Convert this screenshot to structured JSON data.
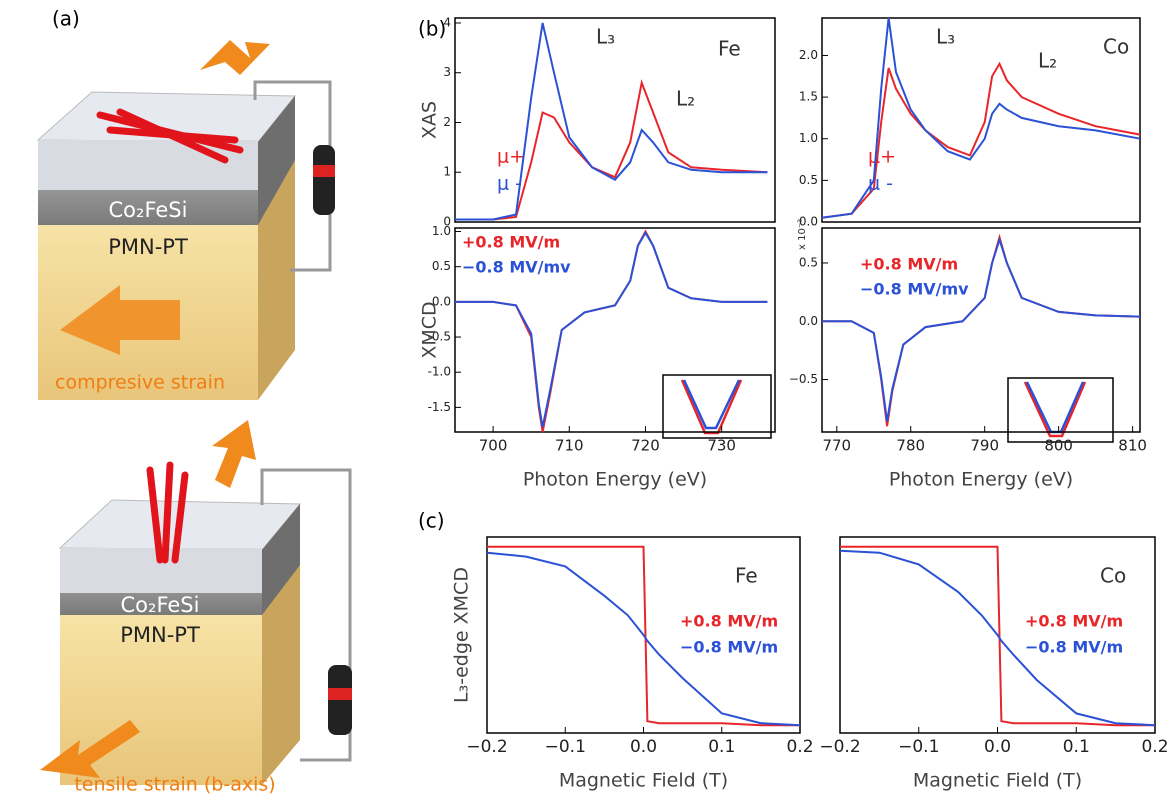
{
  "panel_labels": [
    "(a)",
    "(b)",
    "(c)"
  ],
  "panel_a": {
    "film": "Co₂FeSi",
    "substrate": "PMN-PT",
    "top_caption": "compresive strain",
    "bottom_caption": "tensile strain (b-axis)"
  },
  "chart_data": [
    {
      "type": "line",
      "ylabel": "XAS",
      "annotations": [
        "L₃",
        "L₂",
        "Fe"
      ],
      "x": [
        695,
        700,
        703,
        705,
        706.5,
        708,
        710,
        713,
        716,
        718,
        719.5,
        721,
        723,
        726,
        730,
        736
      ],
      "series": [
        {
          "name": "μ+",
          "color": "#e8262a",
          "values": [
            0.05,
            0.05,
            0.1,
            1.2,
            2.2,
            2.1,
            1.6,
            1.1,
            0.9,
            1.6,
            2.8,
            2.2,
            1.4,
            1.1,
            1.05,
            1.0
          ]
        },
        {
          "name": "μ -",
          "color": "#2b52d6",
          "values": [
            0.05,
            0.05,
            0.15,
            2.5,
            4.0,
            3.0,
            1.7,
            1.1,
            0.85,
            1.2,
            1.85,
            1.6,
            1.2,
            1.05,
            1.0,
            1.0
          ]
        }
      ],
      "xlim": [
        695,
        737
      ],
      "ylim": [
        0,
        4.1
      ],
      "yticks": [
        0,
        1,
        2,
        3,
        4
      ]
    },
    {
      "type": "line",
      "ylabel": "XMCD",
      "xlabel": "Photon Energy (eV)",
      "x": [
        695,
        700,
        703,
        705,
        706,
        706.5,
        707.5,
        709,
        712,
        716,
        718,
        719,
        720,
        721,
        723,
        726,
        730,
        736
      ],
      "series": [
        {
          "name": "+0.8 MV/m",
          "color": "#e8262a",
          "values": [
            0,
            0,
            -0.05,
            -0.5,
            -1.5,
            -1.85,
            -1.3,
            -0.4,
            -0.15,
            -0.05,
            0.3,
            0.8,
            1.0,
            0.8,
            0.2,
            0.05,
            0,
            0
          ]
        },
        {
          "name": "−0.8 MV/mv",
          "color": "#2b52d6",
          "values": [
            0,
            0,
            -0.05,
            -0.45,
            -1.45,
            -1.78,
            -1.25,
            -0.4,
            -0.15,
            -0.05,
            0.3,
            0.8,
            0.98,
            0.8,
            0.2,
            0.05,
            0,
            0
          ]
        }
      ],
      "xlim": [
        695,
        737
      ],
      "ylim": [
        -1.85,
        1.05
      ],
      "xticks": [
        700,
        710,
        720,
        730
      ],
      "yticks": [
        {
          "value": -1.5,
          "label": "-1.5"
        },
        {
          "value": -1,
          "label": "-1.0"
        },
        {
          "value": -0.5,
          "label": "-0.5"
        },
        {
          "value": 0,
          "label": "0.0"
        },
        {
          "value": 0.5,
          "label": "0.5"
        },
        {
          "value": 1,
          "label": "1.0"
        }
      ]
    },
    {
      "type": "line",
      "annotations": [
        "L₃",
        "L₂",
        "Co"
      ],
      "x": [
        768,
        772,
        775,
        776,
        777,
        778,
        780,
        782,
        785,
        788,
        790,
        791,
        792,
        793,
        795,
        800,
        805,
        811
      ],
      "series": [
        {
          "name": "μ+",
          "color": "#e8262a",
          "values": [
            0.05,
            0.1,
            0.4,
            1.2,
            1.85,
            1.6,
            1.3,
            1.1,
            0.9,
            0.8,
            1.2,
            1.75,
            1.9,
            1.7,
            1.5,
            1.3,
            1.15,
            1.05
          ]
        },
        {
          "name": "μ -",
          "color": "#2b52d6",
          "values": [
            0.05,
            0.1,
            0.5,
            1.6,
            2.45,
            1.8,
            1.35,
            1.1,
            0.85,
            0.75,
            1.0,
            1.3,
            1.42,
            1.35,
            1.25,
            1.15,
            1.1,
            1.0
          ]
        }
      ],
      "xlim": [
        768,
        811
      ],
      "ylim": [
        0,
        2.45
      ],
      "yticks": [
        {
          "value": 0,
          "label": "0.0"
        },
        {
          "value": 0.5,
          "label": "0.5"
        },
        {
          "value": 1,
          "label": "1.0"
        },
        {
          "value": 1.5,
          "label": "1.5"
        },
        {
          "value": 2,
          "label": "2.0"
        }
      ]
    },
    {
      "type": "line",
      "xlabel": "Photon Energy (eV)",
      "annotations": [
        "x 10⁻²"
      ],
      "x": [
        768,
        772,
        775,
        776,
        776.8,
        777.5,
        779,
        782,
        787,
        790,
        791,
        792,
        793,
        795,
        800,
        805,
        811
      ],
      "series": [
        {
          "name": "+0.8 MV/m",
          "color": "#e8262a",
          "values": [
            0,
            0,
            -0.1,
            -0.5,
            -0.9,
            -0.6,
            -0.2,
            -0.05,
            0,
            0.2,
            0.5,
            0.72,
            0.5,
            0.2,
            0.08,
            0.05,
            0.04
          ]
        },
        {
          "name": "−0.8 MV/mv",
          "color": "#2b52d6",
          "values": [
            0,
            0,
            -0.1,
            -0.48,
            -0.86,
            -0.58,
            -0.2,
            -0.05,
            0,
            0.2,
            0.5,
            0.7,
            0.5,
            0.2,
            0.08,
            0.05,
            0.04
          ]
        }
      ],
      "xlim": [
        768,
        811
      ],
      "ylim": [
        -0.95,
        0.8
      ],
      "xticks": [
        770,
        780,
        790,
        800,
        810
      ],
      "yticks": [
        {
          "value": -0.5,
          "label": "−0.5"
        },
        {
          "value": 0,
          "label": "0.0"
        },
        {
          "value": 0.5,
          "label": "0.5"
        }
      ]
    },
    {
      "type": "line",
      "ylabel": "L₃-edge XMCD",
      "xlabel": "Magnetic Field (T)",
      "annotations": [
        "Fe"
      ],
      "x": [
        -0.2,
        -0.15,
        -0.1,
        -0.05,
        -0.02,
        0,
        0.005,
        0.02,
        0.05,
        0.1,
        0.15,
        0.2
      ],
      "series": [
        {
          "name": "+0.8 MV/m",
          "color": "#e8262a",
          "values": [
            0.95,
            0.95,
            0.95,
            0.95,
            0.95,
            0.95,
            0.06,
            0.05,
            0.05,
            0.05,
            0.04,
            0.04
          ]
        },
        {
          "name": "−0.8 MV/m",
          "color": "#2b52d6",
          "values": [
            0.92,
            0.9,
            0.85,
            0.7,
            0.6,
            0.5,
            0.47,
            0.4,
            0.28,
            0.1,
            0.05,
            0.04
          ]
        }
      ],
      "xlim": [
        -0.2,
        0.2
      ],
      "ylim": [
        0,
        1
      ],
      "xticks": [
        {
          "value": -0.2,
          "label": "−0.2"
        },
        {
          "value": -0.1,
          "label": "−0.1"
        },
        {
          "value": 0,
          "label": "0.0"
        },
        0.1,
        0.2
      ]
    },
    {
      "type": "line",
      "xlabel": "Magnetic Field (T)",
      "annotations": [
        "Co"
      ],
      "x": [
        -0.2,
        -0.15,
        -0.1,
        -0.05,
        -0.02,
        0,
        0.005,
        0.02,
        0.05,
        0.1,
        0.15,
        0.2
      ],
      "series": [
        {
          "name": "+0.8 MV/m",
          "color": "#e8262a",
          "values": [
            0.95,
            0.95,
            0.95,
            0.95,
            0.95,
            0.95,
            0.06,
            0.05,
            0.05,
            0.05,
            0.04,
            0.04
          ]
        },
        {
          "name": "−0.8 MV/m",
          "color": "#2b52d6",
          "values": [
            0.93,
            0.92,
            0.86,
            0.72,
            0.6,
            0.5,
            0.47,
            0.4,
            0.27,
            0.1,
            0.05,
            0.04
          ]
        }
      ],
      "xlim": [
        -0.2,
        0.2
      ],
      "ylim": [
        0,
        1
      ],
      "xticks": [
        {
          "value": -0.2,
          "label": "−0.2"
        },
        {
          "value": -0.1,
          "label": "−0.1"
        },
        {
          "value": 0,
          "label": "0.0"
        },
        0.1,
        0.2
      ]
    }
  ]
}
